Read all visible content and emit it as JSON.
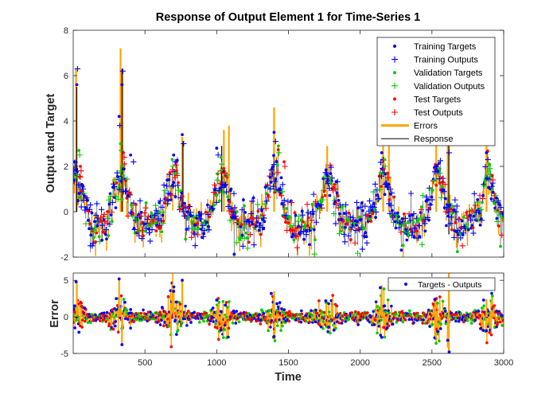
{
  "figure": {
    "title": "Response of Output Element 1 for Time-Series 1",
    "xlabel": "Time"
  },
  "colors": {
    "training": "#0000ff",
    "validation": "#00cc00",
    "test": "#ff0000",
    "errors": "#ffa500",
    "response": "#000000"
  },
  "chart_data": [
    {
      "type": "scatter",
      "title": "Response of Output Element 1 for Time-Series 1",
      "xlabel": "",
      "ylabel": "Output and Target",
      "xlim": [
        0,
        3000
      ],
      "ylim": [
        -2,
        8
      ],
      "yticks": [
        "-2",
        "0",
        "2",
        "4",
        "6",
        "8"
      ],
      "grid": false,
      "legend_position": "top-right",
      "legend": [
        "Training Targets",
        "Training Outputs",
        "Validation Targets",
        "Validation Outputs",
        "Test Targets",
        "Test Outputs",
        "Errors",
        "Response"
      ],
      "series": [
        {
          "name": "Training Targets",
          "x": [
            10,
            25,
            60,
            100,
            320,
            340,
            400,
            600,
            700,
            760,
            1000,
            1100,
            1400,
            1450,
            1770,
            1850,
            2150,
            2200,
            2530,
            2610,
            2880,
            2950
          ],
          "y": [
            2.2,
            5.6,
            1.2,
            0.5,
            4.2,
            5.6,
            2.5,
            0.4,
            2.5,
            3.4,
            2.8,
            1.0,
            3.5,
            1.5,
            1.6,
            0.5,
            2.6,
            1.2,
            2.0,
            3.1,
            2.6,
            0.6
          ]
        },
        {
          "name": "Training Outputs",
          "x": [
            15,
            30,
            70,
            120,
            325,
            345,
            420,
            620,
            710,
            770,
            1010,
            1120,
            1410,
            1460,
            1780,
            1860,
            2160,
            2210,
            2540,
            2620,
            2890,
            2960
          ],
          "y": [
            2.0,
            6.3,
            1.0,
            0.3,
            3.8,
            6.2,
            2.2,
            0.2,
            2.2,
            3.0,
            2.5,
            0.8,
            3.1,
            1.2,
            1.4,
            0.3,
            2.3,
            1.0,
            1.8,
            2.6,
            2.3,
            0.4
          ]
        },
        {
          "name": "Validation Targets",
          "x": [
            40,
            330,
            690,
            1030,
            1430,
            1790,
            2170,
            2550,
            2900
          ],
          "y": [
            2.7,
            3.0,
            2.3,
            2.4,
            2.9,
            1.5,
            2.3,
            1.9,
            2.1
          ]
        },
        {
          "name": "Validation Outputs",
          "x": [
            45,
            335,
            695,
            1035,
            1435,
            1795,
            2175,
            2555,
            2905
          ],
          "y": [
            2.5,
            2.7,
            2.0,
            2.1,
            2.6,
            1.3,
            2.0,
            1.7,
            1.9
          ]
        },
        {
          "name": "Test Targets",
          "x": [
            50,
            350,
            720,
            1050,
            1470,
            1820,
            2190,
            2570,
            2920
          ],
          "y": [
            2.0,
            2.6,
            1.8,
            1.9,
            2.2,
            1.2,
            1.7,
            1.5,
            1.6
          ]
        },
        {
          "name": "Test Outputs",
          "x": [
            55,
            355,
            725,
            1055,
            1475,
            1825,
            2195,
            2575,
            2925
          ],
          "y": [
            1.8,
            2.4,
            1.6,
            1.7,
            2.0,
            1.0,
            1.5,
            1.3,
            1.4
          ]
        }
      ],
      "error_spikes": [
        {
          "x": 20,
          "y": [
            0,
            6.3
          ]
        },
        {
          "x": 330,
          "y": [
            0,
            7.2
          ]
        },
        {
          "x": 345,
          "y": [
            0,
            6.3
          ]
        },
        {
          "x": 760,
          "y": [
            0,
            3.3
          ]
        },
        {
          "x": 1050,
          "y": [
            0,
            3.6
          ]
        },
        {
          "x": 1085,
          "y": [
            0,
            3.8
          ]
        },
        {
          "x": 1400,
          "y": [
            0,
            4.6
          ]
        },
        {
          "x": 1770,
          "y": [
            0,
            2.9
          ]
        },
        {
          "x": 2160,
          "y": [
            0,
            3.2
          ]
        },
        {
          "x": 2200,
          "y": [
            0,
            2.9
          ]
        },
        {
          "x": 2530,
          "y": [
            0,
            3.2
          ]
        },
        {
          "x": 2610,
          "y": [
            0,
            3.3
          ]
        },
        {
          "x": 2880,
          "y": [
            0,
            3.6
          ]
        }
      ],
      "response_spikes": [
        {
          "x": 25,
          "y": [
            0,
            5.5
          ]
        },
        {
          "x": 340,
          "y": [
            0,
            6.3
          ]
        },
        {
          "x": 765,
          "y": [
            0,
            3.1
          ]
        },
        {
          "x": 1035,
          "y": [
            0,
            2.9
          ]
        },
        {
          "x": 2618,
          "y": [
            -1,
            3.2
          ]
        }
      ]
    },
    {
      "type": "scatter",
      "xlabel": "Time",
      "ylabel": "Error",
      "xlim": [
        0,
        3000
      ],
      "ylim": [
        -5,
        6
      ],
      "xticks": [
        "500",
        "1000",
        "1500",
        "2000",
        "2500",
        "3000"
      ],
      "yticks": [
        "-5",
        "0",
        "5"
      ],
      "grid": false,
      "legend_position": "top-right",
      "legend": [
        "Targets - Outputs"
      ],
      "series": [
        {
          "name": "Targets - Outputs",
          "x": [
            10,
            20,
            40,
            80,
            300,
            320,
            340,
            360,
            400,
            620,
            700,
            720,
            760,
            1000,
            1030,
            1060,
            1380,
            1400,
            1420,
            1760,
            1780,
            2140,
            2150,
            2170,
            2520,
            2540,
            2610,
            2620,
            2860,
            2880,
            2950
          ],
          "y": [
            1.5,
            4.8,
            -2.1,
            1.2,
            2.5,
            5.2,
            -3.8,
            2.0,
            1.0,
            1.3,
            3.5,
            -2.4,
            5.0,
            2.3,
            -1.8,
            1.6,
            3.2,
            -2.7,
            1.8,
            2.2,
            -1.4,
            4.0,
            -2.8,
            1.5,
            2.4,
            -2.0,
            -3.2,
            -4.8,
            2.3,
            -1.9,
            0.8
          ]
        }
      ],
      "error_spikes": [
        {
          "x": 25,
          "y": [
            0,
            4.8
          ]
        },
        {
          "x": 320,
          "y": [
            0,
            5.3
          ]
        },
        {
          "x": 340,
          "y": [
            0,
            -3.9
          ]
        },
        {
          "x": 700,
          "y": [
            0,
            3.6
          ]
        },
        {
          "x": 760,
          "y": [
            0,
            5.2
          ]
        },
        {
          "x": 1400,
          "y": [
            0,
            3.5
          ]
        },
        {
          "x": 2150,
          "y": [
            0,
            4.3
          ]
        },
        {
          "x": 2610,
          "y": [
            0,
            -4.2
          ]
        },
        {
          "x": 2618,
          "y": [
            6,
            -5
          ]
        },
        {
          "x": 2880,
          "y": [
            0,
            2.4
          ]
        }
      ]
    }
  ]
}
